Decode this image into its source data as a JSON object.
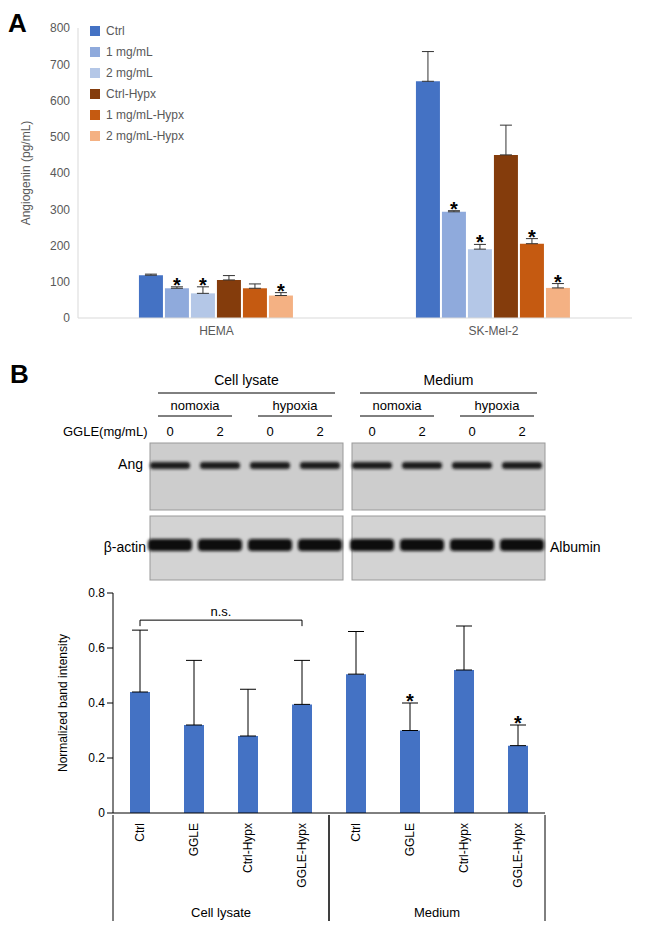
{
  "chart_data": [
    {
      "type": "bar",
      "panel": "A",
      "y_label": "Angiogenin (pg/mL)",
      "categories": [
        "HEMA",
        "SK-Mel-2"
      ],
      "series": [
        {
          "name": "Ctrl",
          "color": "#4472c4",
          "values": [
            118,
            653
          ],
          "errors": [
            3,
            82
          ],
          "annotations": [
            null,
            null
          ]
        },
        {
          "name": "1 mg/mL",
          "color": "#8faadc",
          "values": [
            82,
            293
          ],
          "errors": [
            4,
            3
          ],
          "annotations": [
            "*",
            "*"
          ]
        },
        {
          "name": "2 mg/mL",
          "color": "#b4c7e7",
          "values": [
            68,
            190
          ],
          "errors": [
            18,
            13
          ],
          "annotations": [
            "*",
            "*"
          ]
        },
        {
          "name": "Ctrl-Hypx",
          "color": "#843c0c",
          "values": [
            105,
            450
          ],
          "errors": [
            12,
            82
          ],
          "annotations": [
            null,
            null
          ]
        },
        {
          "name": "1 mg/mL-Hypx",
          "color": "#c55a11",
          "values": [
            82,
            205
          ],
          "errors": [
            12,
            14
          ],
          "annotations": [
            null,
            "*"
          ]
        },
        {
          "name": "2 mg/mL-Hypx",
          "color": "#f4b183",
          "values": [
            62,
            83
          ],
          "errors": [
            8,
            12
          ],
          "annotations": [
            "*",
            "*"
          ]
        }
      ],
      "ylim": [
        0,
        800
      ],
      "yticks": [
        0,
        100,
        200,
        300,
        400,
        500,
        600,
        700,
        800
      ],
      "grid": false,
      "legend": "upper left"
    },
    {
      "type": "bar",
      "panel": "B",
      "y_label": "Normalized band intensity",
      "categories": [
        "Ctrl",
        "GGLE",
        "Ctrl-Hypx",
        "GGLE-Hypx",
        "Ctrl",
        "GGLE",
        "Ctrl-Hypx",
        "GGLE-Hypx"
      ],
      "values": [
        0.44,
        0.32,
        0.28,
        0.395,
        0.505,
        0.3,
        0.52,
        0.245
      ],
      "errors": [
        0.225,
        0.235,
        0.17,
        0.16,
        0.155,
        0.1,
        0.16,
        0.075
      ],
      "annotations": [
        null,
        null,
        null,
        null,
        null,
        "*",
        null,
        "*"
      ],
      "color": "#4472c4",
      "ylim": [
        0,
        0.8
      ],
      "yticks": [
        0,
        0.2,
        0.4,
        0.6,
        0.8
      ],
      "grid": false,
      "groups": [
        {
          "label": "Cell lysate",
          "from": 0,
          "to": 3
        },
        {
          "label": "Medium",
          "from": 4,
          "to": 7
        }
      ],
      "brackets": [
        {
          "label": "n.s.",
          "from": 0,
          "to": 3
        }
      ]
    }
  ],
  "blot": {
    "target": "Ang",
    "dose_label": "GGLE(mg/mL)",
    "doses": [
      0,
      2
    ],
    "conditions": [
      "nomoxia",
      "hypoxia"
    ],
    "sections": [
      {
        "label": "Cell lysate",
        "loading_control": "β-actin"
      },
      {
        "label": "Medium",
        "loading_control": "Albumin"
      }
    ]
  }
}
